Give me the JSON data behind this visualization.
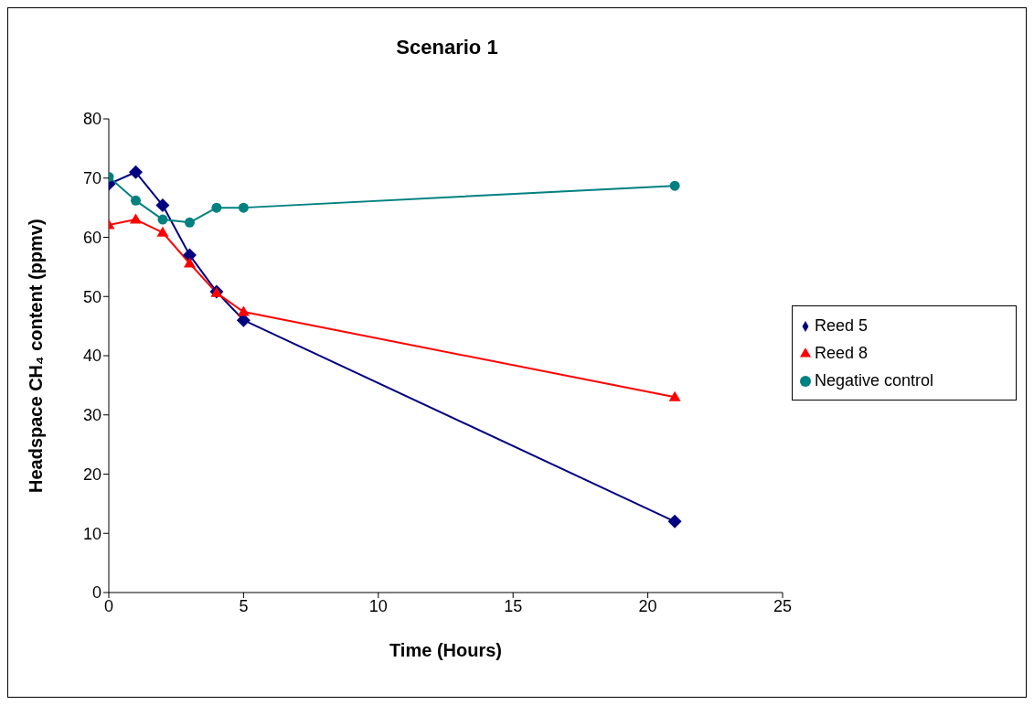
{
  "chart_data": {
    "type": "line",
    "title": "Scenario 1",
    "xlabel": "Time (Hours)",
    "ylabel": "Headspace CH₄ content (ppmv)",
    "x": [
      0,
      1,
      2,
      3,
      4,
      5,
      21
    ],
    "series": [
      {
        "name": "Reed 5",
        "color": "#000080",
        "marker": "diamond",
        "values": [
          69,
          71,
          65.4,
          57,
          50.8,
          46,
          12
        ]
      },
      {
        "name": "Reed 8",
        "color": "#ff0000",
        "marker": "triangle",
        "values": [
          62.1,
          63,
          60.8,
          55.6,
          50.6,
          47.4,
          33
        ]
      },
      {
        "name": "Negative control",
        "color": "#008080",
        "marker": "circle",
        "values": [
          70.2,
          66.2,
          63,
          62.5,
          65,
          65,
          68.7
        ]
      }
    ],
    "xlim": [
      0,
      25
    ],
    "xticks": [
      0,
      5,
      10,
      15,
      20,
      25
    ],
    "ylim": [
      0,
      80
    ],
    "yticks": [
      0,
      10,
      20,
      30,
      40,
      50,
      60,
      70,
      80
    ],
    "grid": false,
    "legend": "right",
    "line_style": "solid"
  }
}
